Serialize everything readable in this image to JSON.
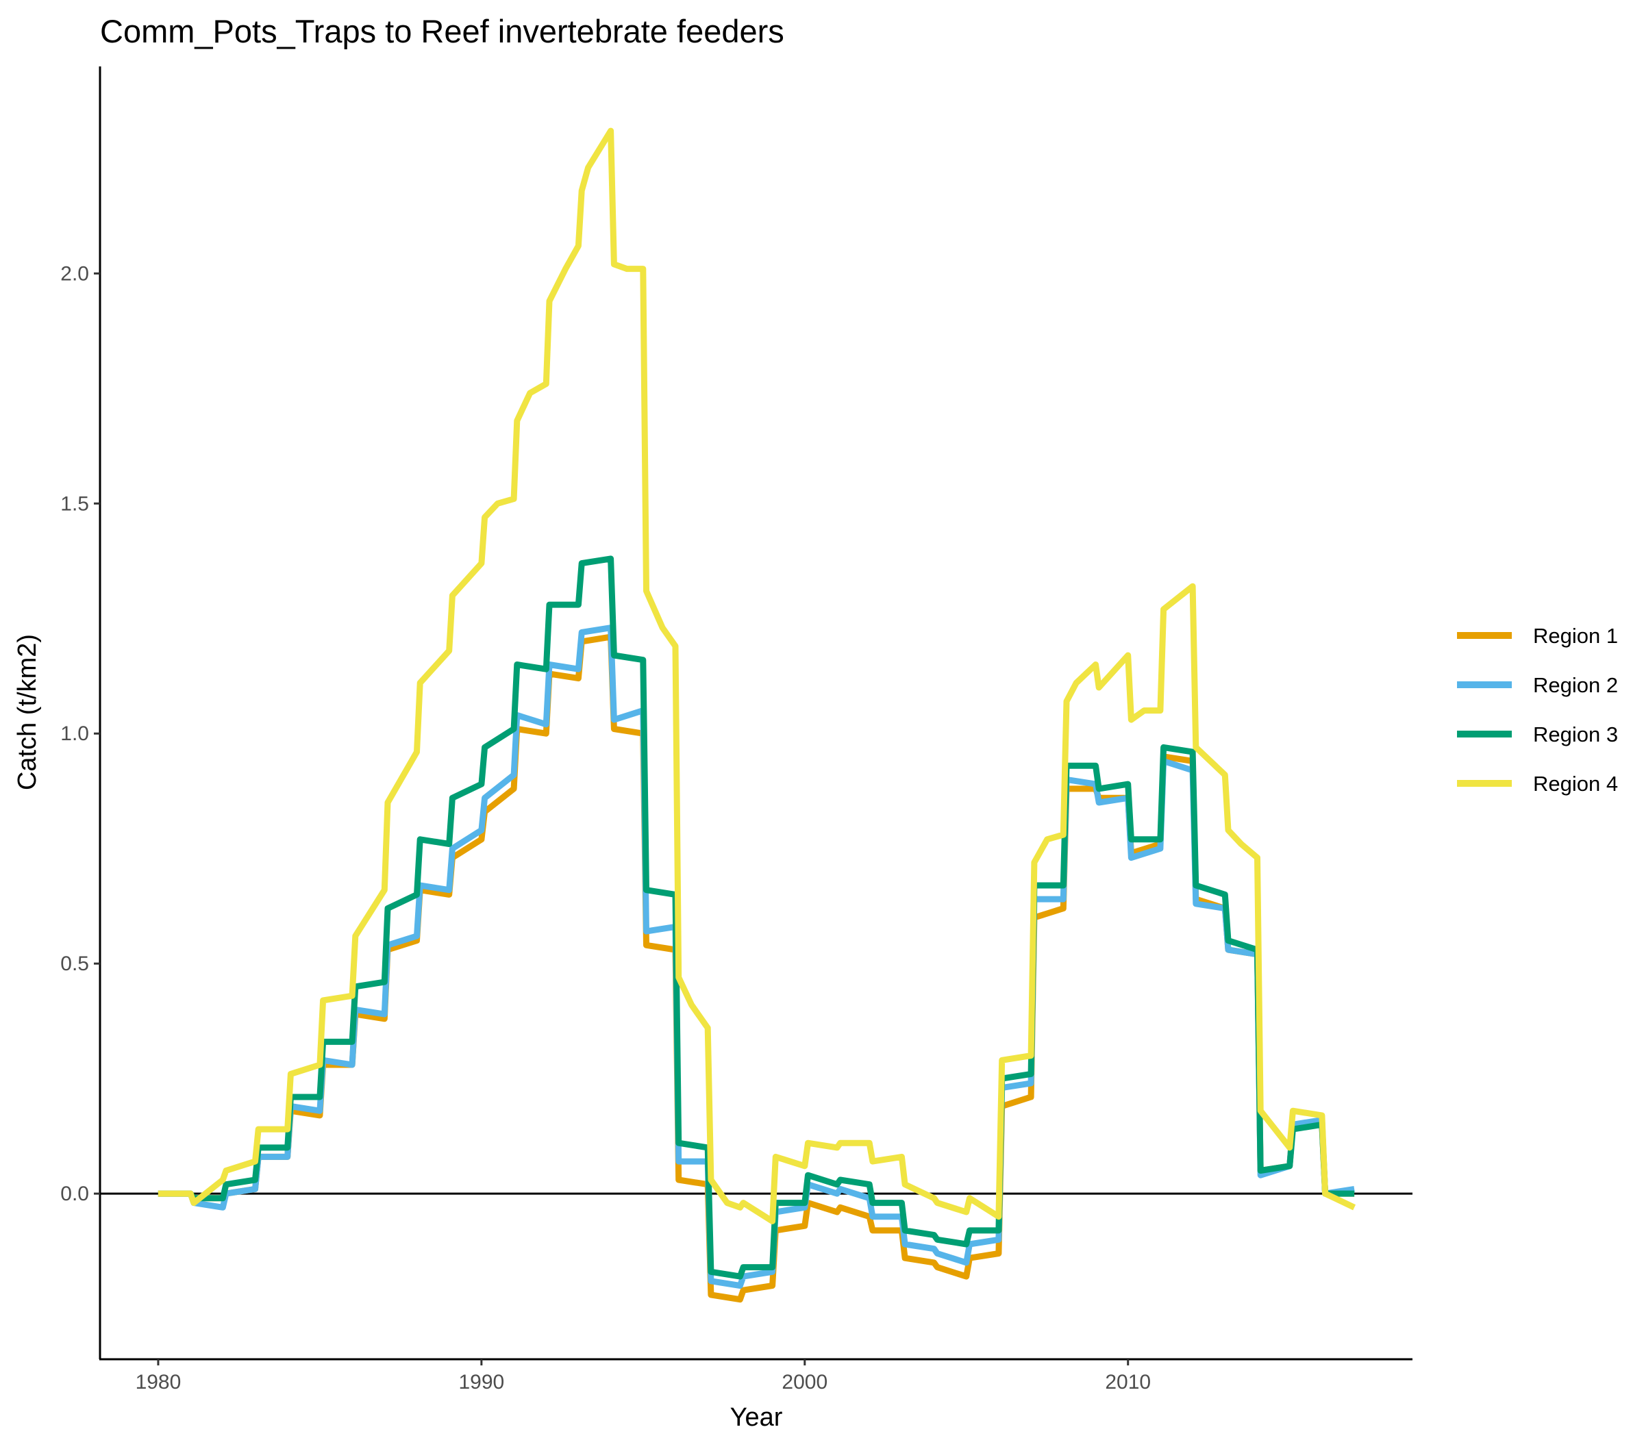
{
  "chart_data": {
    "type": "line",
    "title": "Comm_Pots_Traps to Reef invertebrate feeders",
    "xlabel": "Year",
    "ylabel": "Catch (t/km2)",
    "xlim": [
      1978.2,
      2018.8
    ],
    "ylim": [
      -0.36,
      2.45
    ],
    "x_ticks": [
      1980,
      1990,
      2000,
      2010
    ],
    "y_ticks": [
      0.0,
      0.5,
      1.0,
      1.5,
      2.0
    ],
    "y_tick_labels": [
      "0.0",
      "0.5",
      "1.0",
      "1.5",
      "2.0"
    ],
    "zero_line": true,
    "grid": false,
    "legend_position": "right",
    "series": [
      {
        "name": "Region 1",
        "color": "#E69F00",
        "points": [
          [
            1980,
            0
          ],
          [
            1981,
            0
          ],
          [
            1981.1,
            -0.01
          ],
          [
            1982,
            -0.01
          ],
          [
            1982.1,
            0
          ],
          [
            1983,
            0.01
          ],
          [
            1983.1,
            0.08
          ],
          [
            1984,
            0.08
          ],
          [
            1984.1,
            0.18
          ],
          [
            1985,
            0.17
          ],
          [
            1985.1,
            0.28
          ],
          [
            1986,
            0.28
          ],
          [
            1986.1,
            0.39
          ],
          [
            1987,
            0.38
          ],
          [
            1987.1,
            0.53
          ],
          [
            1988,
            0.55
          ],
          [
            1988.1,
            0.66
          ],
          [
            1989,
            0.65
          ],
          [
            1989.1,
            0.73
          ],
          [
            1990,
            0.77
          ],
          [
            1990.1,
            0.83
          ],
          [
            1991,
            0.88
          ],
          [
            1991.1,
            1.01
          ],
          [
            1992,
            1.0
          ],
          [
            1992.1,
            1.13
          ],
          [
            1993,
            1.12
          ],
          [
            1993.1,
            1.2
          ],
          [
            1994,
            1.21
          ],
          [
            1994.1,
            1.01
          ],
          [
            1995,
            1.0
          ],
          [
            1995.1,
            0.54
          ],
          [
            1996,
            0.53
          ],
          [
            1996.1,
            0.03
          ],
          [
            1997,
            0.02
          ],
          [
            1997.1,
            -0.22
          ],
          [
            1998,
            -0.23
          ],
          [
            1998.1,
            -0.21
          ],
          [
            1999,
            -0.2
          ],
          [
            1999.1,
            -0.08
          ],
          [
            2000,
            -0.07
          ],
          [
            2000.1,
            -0.02
          ],
          [
            2001,
            -0.04
          ],
          [
            2001.1,
            -0.03
          ],
          [
            2002,
            -0.05
          ],
          [
            2002.1,
            -0.08
          ],
          [
            2003,
            -0.08
          ],
          [
            2003.1,
            -0.14
          ],
          [
            2004,
            -0.15
          ],
          [
            2004.1,
            -0.16
          ],
          [
            2005,
            -0.18
          ],
          [
            2005.1,
            -0.14
          ],
          [
            2006,
            -0.13
          ],
          [
            2006.1,
            0.19
          ],
          [
            2007,
            0.21
          ],
          [
            2007.1,
            0.6
          ],
          [
            2008,
            0.62
          ],
          [
            2008.1,
            0.88
          ],
          [
            2009,
            0.88
          ],
          [
            2009.1,
            0.86
          ],
          [
            2010,
            0.86
          ],
          [
            2010.1,
            0.74
          ],
          [
            2011,
            0.76
          ],
          [
            2011.1,
            0.95
          ],
          [
            2012,
            0.94
          ],
          [
            2012.1,
            0.64
          ],
          [
            2013,
            0.62
          ],
          [
            2013.1,
            0.53
          ],
          [
            2014,
            0.52
          ],
          [
            2014.1,
            0.05
          ],
          [
            2015,
            0.06
          ],
          [
            2015.1,
            0.15
          ],
          [
            2016,
            0.15
          ],
          [
            2016.1,
            0
          ],
          [
            2017,
            0
          ]
        ]
      },
      {
        "name": "Region 2",
        "color": "#56B4E9",
        "points": [
          [
            1980,
            0
          ],
          [
            1981,
            0
          ],
          [
            1981.1,
            -0.02
          ],
          [
            1982,
            -0.03
          ],
          [
            1982.1,
            0
          ],
          [
            1983,
            0.01
          ],
          [
            1983.1,
            0.08
          ],
          [
            1984,
            0.08
          ],
          [
            1984.1,
            0.19
          ],
          [
            1985,
            0.18
          ],
          [
            1985.1,
            0.29
          ],
          [
            1986,
            0.28
          ],
          [
            1986.1,
            0.4
          ],
          [
            1987,
            0.39
          ],
          [
            1987.1,
            0.54
          ],
          [
            1988,
            0.56
          ],
          [
            1988.1,
            0.67
          ],
          [
            1989,
            0.66
          ],
          [
            1989.1,
            0.75
          ],
          [
            1990,
            0.79
          ],
          [
            1990.1,
            0.86
          ],
          [
            1991,
            0.91
          ],
          [
            1991.1,
            1.04
          ],
          [
            1992,
            1.02
          ],
          [
            1992.1,
            1.15
          ],
          [
            1993,
            1.14
          ],
          [
            1993.1,
            1.22
          ],
          [
            1994,
            1.23
          ],
          [
            1994.1,
            1.03
          ],
          [
            1995,
            1.05
          ],
          [
            1995.1,
            0.57
          ],
          [
            1996,
            0.58
          ],
          [
            1996.1,
            0.07
          ],
          [
            1997,
            0.07
          ],
          [
            1997.1,
            -0.19
          ],
          [
            1998,
            -0.2
          ],
          [
            1998.1,
            -0.18
          ],
          [
            1999,
            -0.17
          ],
          [
            1999.1,
            -0.04
          ],
          [
            2000,
            -0.03
          ],
          [
            2000.1,
            0.02
          ],
          [
            2001,
            0
          ],
          [
            2001.1,
            0.01
          ],
          [
            2002,
            -0.01
          ],
          [
            2002.1,
            -0.05
          ],
          [
            2003,
            -0.05
          ],
          [
            2003.1,
            -0.11
          ],
          [
            2004,
            -0.12
          ],
          [
            2004.1,
            -0.13
          ],
          [
            2005,
            -0.15
          ],
          [
            2005.1,
            -0.11
          ],
          [
            2006,
            -0.1
          ],
          [
            2006.1,
            0.23
          ],
          [
            2007,
            0.24
          ],
          [
            2007.1,
            0.64
          ],
          [
            2008,
            0.64
          ],
          [
            2008.1,
            0.9
          ],
          [
            2009,
            0.89
          ],
          [
            2009.1,
            0.85
          ],
          [
            2010,
            0.86
          ],
          [
            2010.1,
            0.73
          ],
          [
            2011,
            0.75
          ],
          [
            2011.1,
            0.94
          ],
          [
            2012,
            0.92
          ],
          [
            2012.1,
            0.63
          ],
          [
            2013,
            0.62
          ],
          [
            2013.1,
            0.53
          ],
          [
            2014,
            0.52
          ],
          [
            2014.1,
            0.04
          ],
          [
            2015,
            0.06
          ],
          [
            2015.1,
            0.15
          ],
          [
            2016,
            0.16
          ],
          [
            2016.1,
            0
          ],
          [
            2017,
            0.01
          ]
        ]
      },
      {
        "name": "Region 3",
        "color": "#009E73",
        "points": [
          [
            1980,
            0
          ],
          [
            1981,
            0
          ],
          [
            1981.1,
            -0.01
          ],
          [
            1982,
            -0.01
          ],
          [
            1982.1,
            0.02
          ],
          [
            1983,
            0.03
          ],
          [
            1983.1,
            0.1
          ],
          [
            1984,
            0.1
          ],
          [
            1984.1,
            0.21
          ],
          [
            1985,
            0.21
          ],
          [
            1985.1,
            0.33
          ],
          [
            1986,
            0.33
          ],
          [
            1986.1,
            0.45
          ],
          [
            1987,
            0.46
          ],
          [
            1987.1,
            0.62
          ],
          [
            1988,
            0.65
          ],
          [
            1988.1,
            0.77
          ],
          [
            1989,
            0.76
          ],
          [
            1989.1,
            0.86
          ],
          [
            1990,
            0.89
          ],
          [
            1990.1,
            0.97
          ],
          [
            1991,
            1.01
          ],
          [
            1991.1,
            1.15
          ],
          [
            1992,
            1.14
          ],
          [
            1992.1,
            1.28
          ],
          [
            1993,
            1.28
          ],
          [
            1993.1,
            1.37
          ],
          [
            1994,
            1.38
          ],
          [
            1994.1,
            1.17
          ],
          [
            1995,
            1.16
          ],
          [
            1995.1,
            0.66
          ],
          [
            1996,
            0.65
          ],
          [
            1996.1,
            0.11
          ],
          [
            1997,
            0.1
          ],
          [
            1997.1,
            -0.17
          ],
          [
            1998,
            -0.18
          ],
          [
            1998.1,
            -0.16
          ],
          [
            1999,
            -0.16
          ],
          [
            1999.1,
            -0.02
          ],
          [
            2000,
            -0.02
          ],
          [
            2000.1,
            0.04
          ],
          [
            2001,
            0.02
          ],
          [
            2001.1,
            0.03
          ],
          [
            2002,
            0.02
          ],
          [
            2002.1,
            -0.02
          ],
          [
            2003,
            -0.02
          ],
          [
            2003.1,
            -0.08
          ],
          [
            2004,
            -0.09
          ],
          [
            2004.1,
            -0.1
          ],
          [
            2005,
            -0.11
          ],
          [
            2005.1,
            -0.08
          ],
          [
            2006,
            -0.08
          ],
          [
            2006.1,
            0.25
          ],
          [
            2007,
            0.26
          ],
          [
            2007.1,
            0.67
          ],
          [
            2008,
            0.67
          ],
          [
            2008.1,
            0.93
          ],
          [
            2009,
            0.93
          ],
          [
            2009.1,
            0.88
          ],
          [
            2010,
            0.89
          ],
          [
            2010.1,
            0.77
          ],
          [
            2011,
            0.77
          ],
          [
            2011.1,
            0.97
          ],
          [
            2012,
            0.96
          ],
          [
            2012.1,
            0.67
          ],
          [
            2013,
            0.65
          ],
          [
            2013.1,
            0.55
          ],
          [
            2014,
            0.53
          ],
          [
            2014.1,
            0.05
          ],
          [
            2015,
            0.06
          ],
          [
            2015.1,
            0.14
          ],
          [
            2016,
            0.15
          ],
          [
            2016.1,
            0
          ],
          [
            2017,
            0
          ]
        ]
      },
      {
        "name": "Region 4",
        "color": "#F0E442",
        "points": [
          [
            1980,
            0
          ],
          [
            1981,
            0
          ],
          [
            1981.1,
            -0.02
          ],
          [
            1982,
            0.03
          ],
          [
            1982.1,
            0.05
          ],
          [
            1983,
            0.07
          ],
          [
            1983.1,
            0.14
          ],
          [
            1984,
            0.14
          ],
          [
            1984.1,
            0.26
          ],
          [
            1985,
            0.28
          ],
          [
            1985.1,
            0.42
          ],
          [
            1986,
            0.43
          ],
          [
            1986.1,
            0.56
          ],
          [
            1987,
            0.66
          ],
          [
            1987.1,
            0.85
          ],
          [
            1988,
            0.96
          ],
          [
            1988.1,
            1.11
          ],
          [
            1989,
            1.18
          ],
          [
            1989.1,
            1.3
          ],
          [
            1990,
            1.37
          ],
          [
            1990.1,
            1.47
          ],
          [
            1990.5,
            1.5
          ],
          [
            1991,
            1.51
          ],
          [
            1991.1,
            1.68
          ],
          [
            1991.5,
            1.74
          ],
          [
            1992,
            1.76
          ],
          [
            1992.1,
            1.94
          ],
          [
            1992.6,
            2.01
          ],
          [
            1993,
            2.06
          ],
          [
            1993.1,
            2.18
          ],
          [
            1993.3,
            2.23
          ],
          [
            1994,
            2.31
          ],
          [
            1994.1,
            2.02
          ],
          [
            1994.5,
            2.01
          ],
          [
            1995,
            2.01
          ],
          [
            1995.1,
            1.31
          ],
          [
            1995.6,
            1.23
          ],
          [
            1996,
            1.19
          ],
          [
            1996.1,
            0.47
          ],
          [
            1996.5,
            0.41
          ],
          [
            1997,
            0.36
          ],
          [
            1997.1,
            0.03
          ],
          [
            1997.6,
            -0.02
          ],
          [
            1998,
            -0.03
          ],
          [
            1998.1,
            -0.02
          ],
          [
            1999,
            -0.06
          ],
          [
            1999.1,
            0.08
          ],
          [
            2000,
            0.06
          ],
          [
            2000.1,
            0.11
          ],
          [
            2001,
            0.1
          ],
          [
            2001.1,
            0.11
          ],
          [
            2002,
            0.11
          ],
          [
            2002.1,
            0.07
          ],
          [
            2003,
            0.08
          ],
          [
            2003.1,
            0.02
          ],
          [
            2004,
            -0.01
          ],
          [
            2004.1,
            -0.02
          ],
          [
            2005,
            -0.04
          ],
          [
            2005.1,
            -0.01
          ],
          [
            2006,
            -0.05
          ],
          [
            2006.1,
            0.29
          ],
          [
            2007,
            0.3
          ],
          [
            2007.1,
            0.72
          ],
          [
            2007.5,
            0.77
          ],
          [
            2008,
            0.78
          ],
          [
            2008.1,
            1.07
          ],
          [
            2008.4,
            1.11
          ],
          [
            2009,
            1.15
          ],
          [
            2009.1,
            1.1
          ],
          [
            2010,
            1.17
          ],
          [
            2010.1,
            1.03
          ],
          [
            2010.5,
            1.05
          ],
          [
            2011,
            1.05
          ],
          [
            2011.1,
            1.27
          ],
          [
            2012,
            1.32
          ],
          [
            2012.1,
            0.97
          ],
          [
            2013,
            0.91
          ],
          [
            2013.1,
            0.79
          ],
          [
            2013.5,
            0.76
          ],
          [
            2014,
            0.73
          ],
          [
            2014.1,
            0.18
          ],
          [
            2015,
            0.1
          ],
          [
            2015.1,
            0.18
          ],
          [
            2016,
            0.17
          ],
          [
            2016.1,
            0
          ],
          [
            2017,
            -0.03
          ]
        ]
      }
    ]
  }
}
